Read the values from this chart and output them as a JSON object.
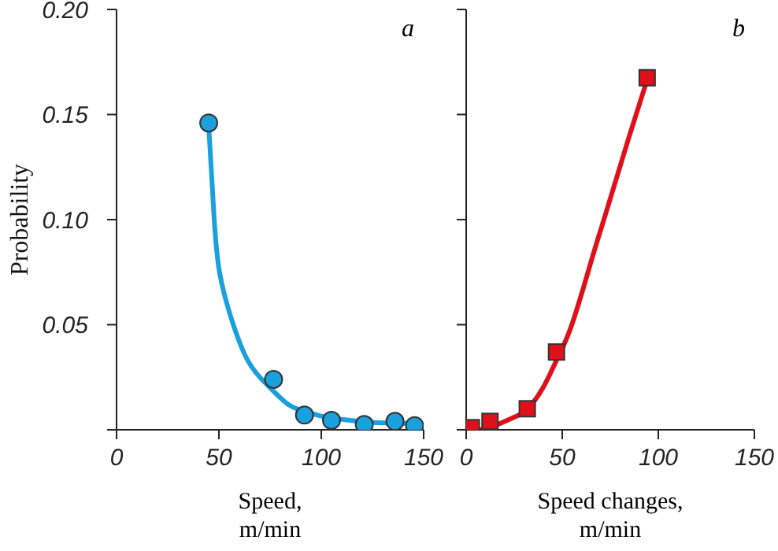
{
  "chart_data": [
    {
      "type": "scatter",
      "title": "a",
      "xlabel": "Speed, m/min",
      "ylabel": "Probability",
      "xlim": [
        0,
        150
      ],
      "xticks": [
        0,
        50,
        100,
        150
      ],
      "ylim": [
        0,
        0.2
      ],
      "yticks": [
        {
          "value": 0,
          "label": null
        },
        {
          "value": 0.05,
          "label": "0.05"
        },
        {
          "value": 0.1,
          "label": "0.10"
        },
        {
          "value": 0.15,
          "label": "0.15"
        },
        {
          "value": 0.2,
          "label": "0.20"
        }
      ],
      "series": [
        {
          "type": "line",
          "color": "#1aa0dc",
          "marker": "none",
          "x": [
            45,
            47.7,
            50.3,
            55.4,
            63,
            70,
            76,
            84,
            91.8,
            100,
            110,
            125,
            148
          ],
          "values": [
            0.145,
            0.1,
            0.075,
            0.055,
            0.035,
            0.025,
            0.019,
            0.012,
            0.0088,
            0.0065,
            0.005,
            0.0035,
            0.003
          ]
        },
        {
          "type": "scatter",
          "color": "#1aa0dc",
          "marker": "circle",
          "x": [
            45,
            76.7,
            91.8,
            105,
            121,
            136,
            145.6
          ],
          "values": [
            0.146,
            0.024,
            0.007,
            0.0045,
            0.0025,
            0.004,
            0.002
          ]
        }
      ]
    },
    {
      "type": "scatter",
      "title": "b",
      "xlabel": "Speed changes, m/min",
      "xlim": [
        0,
        150
      ],
      "xticks": [
        0,
        50,
        100,
        150
      ],
      "ylim": [
        0,
        0.2
      ],
      "yticks": [
        0,
        0.05,
        0.1,
        0.15,
        0.2
      ],
      "tick_labels": "x",
      "series": [
        {
          "type": "line",
          "color": "#e0101a",
          "marker": "none",
          "x": [
            7,
            15,
            25,
            32,
            40,
            47,
            55,
            65,
            70,
            75,
            85,
            94
          ],
          "values": [
            0,
            0.002,
            0.006,
            0.01,
            0.02,
            0.033,
            0.05,
            0.08,
            0.095,
            0.11,
            0.14,
            0.166
          ]
        },
        {
          "type": "scatter",
          "color": "#e0101a",
          "marker": "square",
          "x": [
            2.7,
            12.4,
            31.8,
            47,
            94.2
          ],
          "values": [
            0.001,
            0.004,
            0.01,
            0.037,
            0.1675
          ]
        }
      ]
    }
  ]
}
